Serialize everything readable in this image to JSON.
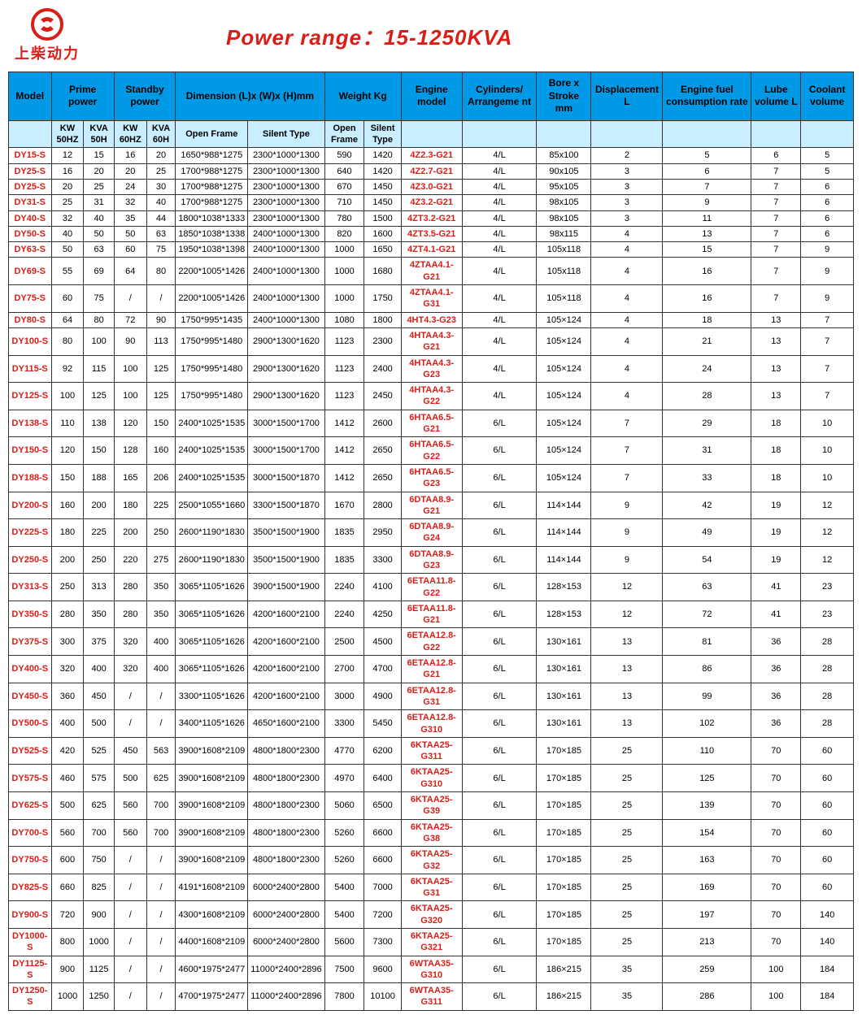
{
  "logo_text": "上柴动力",
  "title": "Power  range：15-1250KVA",
  "columns_top": [
    "Model",
    "Prime power",
    "Standby power",
    "Dimension\n(L)x (W)x (H)mm",
    "Weight\nKg",
    "Engine model",
    "Cylinders/\nArrangeme\nnt",
    "Bore x Stroke\nmm",
    "Displacement\nL",
    "Engine fuel\nconsumption\nrate",
    "Lube\nvolume\nL",
    "Coolant\nvolume"
  ],
  "columns_sub": [
    "KW\n50HZ",
    "KVA\n50H",
    "KW\n60HZ",
    "KVA\n60H",
    "Open\nFrame",
    "Silent\nType",
    "Open\nFrame",
    "Silent\nType"
  ],
  "rows": [
    [
      "DY15-S",
      "12",
      "15",
      "16",
      "20",
      "1650*988*1275",
      "2300*1000*1300",
      "590",
      "1420",
      "4Z2.3-G21",
      "4/L",
      "85x100",
      "2",
      "5",
      "6",
      "5"
    ],
    [
      "DY25-S",
      "16",
      "20",
      "20",
      "25",
      "1700*988*1275",
      "2300*1000*1300",
      "640",
      "1420",
      "4Z2.7-G21",
      "4/L",
      "90x105",
      "3",
      "6",
      "7",
      "5"
    ],
    [
      "DY25-S",
      "20",
      "25",
      "24",
      "30",
      "1700*988*1275",
      "2300*1000*1300",
      "670",
      "1450",
      "4Z3.0-G21",
      "4/L",
      "95x105",
      "3",
      "7",
      "7",
      "6"
    ],
    [
      "DY31-S",
      "25",
      "31",
      "32",
      "40",
      "1700*988*1275",
      "2300*1000*1300",
      "710",
      "1450",
      "4Z3.2-G21",
      "4/L",
      "98x105",
      "3",
      "9",
      "7",
      "6"
    ],
    [
      "DY40-S",
      "32",
      "40",
      "35",
      "44",
      "1800*1038*1333",
      "2300*1000*1300",
      "780",
      "1500",
      "4ZT3.2-G21",
      "4/L",
      "98x105",
      "3",
      "11",
      "7",
      "6"
    ],
    [
      "DY50-S",
      "40",
      "50",
      "50",
      "63",
      "1850*1038*1338",
      "2400*1000*1300",
      "820",
      "1600",
      "4ZT3.5-G21",
      "4/L",
      "98x115",
      "4",
      "13",
      "7",
      "6"
    ],
    [
      "DY63-S",
      "50",
      "63",
      "60",
      "75",
      "1950*1038*1398",
      "2400*1000*1300",
      "1000",
      "1650",
      "4ZT4.1-G21",
      "4/L",
      "105x118",
      "4",
      "15",
      "7",
      "9"
    ],
    [
      "DY69-S",
      "55",
      "69",
      "64",
      "80",
      "2200*1005*1426",
      "2400*1000*1300",
      "1000",
      "1680",
      "4ZTAA4.1-G21",
      "4/L",
      "105x118",
      "4",
      "16",
      "7",
      "9"
    ],
    [
      "DY75-S",
      "60",
      "75",
      "/",
      "/",
      "2200*1005*1426",
      "2400*1000*1300",
      "1000",
      "1750",
      "4ZTAA4.1-G31",
      "4/L",
      "105×118",
      "4",
      "16",
      "7",
      "9"
    ],
    [
      "DY80-S",
      "64",
      "80",
      "72",
      "90",
      "1750*995*1435",
      "2400*1000*1300",
      "1080",
      "1800",
      "4HT4.3-G23",
      "4/L",
      "105×124",
      "4",
      "18",
      "13",
      "7"
    ],
    [
      "DY100-S",
      "80",
      "100",
      "90",
      "113",
      "1750*995*1480",
      "2900*1300*1620",
      "1123",
      "2300",
      "4HTAA4.3-G21",
      "4/L",
      "105×124",
      "4",
      "21",
      "13",
      "7"
    ],
    [
      "DY115-S",
      "92",
      "115",
      "100",
      "125",
      "1750*995*1480",
      "2900*1300*1620",
      "1123",
      "2400",
      "4HTAA4.3-G23",
      "4/L",
      "105×124",
      "4",
      "24",
      "13",
      "7"
    ],
    [
      "DY125-S",
      "100",
      "125",
      "100",
      "125",
      "1750*995*1480",
      "2900*1300*1620",
      "1123",
      "2450",
      "4HTAA4.3-G22",
      "4/L",
      "105×124",
      "4",
      "28",
      "13",
      "7"
    ],
    [
      "DY138-S",
      "110",
      "138",
      "120",
      "150",
      "2400*1025*1535",
      "3000*1500*1700",
      "1412",
      "2600",
      "6HTAA6.5-G21",
      "6/L",
      "105×124",
      "7",
      "29",
      "18",
      "10"
    ],
    [
      "DY150-S",
      "120",
      "150",
      "128",
      "160",
      "2400*1025*1535",
      "3000*1500*1700",
      "1412",
      "2650",
      "6HTAA6.5-G22",
      "6/L",
      "105×124",
      "7",
      "31",
      "18",
      "10"
    ],
    [
      "DY188-S",
      "150",
      "188",
      "165",
      "206",
      "2400*1025*1535",
      "3000*1500*1870",
      "1412",
      "2650",
      "6HTAA6.5-G23",
      "6/L",
      "105×124",
      "7",
      "33",
      "18",
      "10"
    ],
    [
      "DY200-S",
      "160",
      "200",
      "180",
      "225",
      "2500*1055*1660",
      "3300*1500*1870",
      "1670",
      "2800",
      "6DTAA8.9-G21",
      "6/L",
      "114×144",
      "9",
      "42",
      "19",
      "12"
    ],
    [
      "DY225-S",
      "180",
      "225",
      "200",
      "250",
      "2600*1190*1830",
      "3500*1500*1900",
      "1835",
      "2950",
      "6DTAA8.9-G24",
      "6/L",
      "114×144",
      "9",
      "49",
      "19",
      "12"
    ],
    [
      "DY250-S",
      "200",
      "250",
      "220",
      "275",
      "2600*1190*1830",
      "3500*1500*1900",
      "1835",
      "3300",
      "6DTAA8.9-G23",
      "6/L",
      "114×144",
      "9",
      "54",
      "19",
      "12"
    ],
    [
      "DY313-S",
      "250",
      "313",
      "280",
      "350",
      "3065*1105*1626",
      "3900*1500*1900",
      "2240",
      "4100",
      "6ETAA11.8-G22",
      "6/L",
      "128×153",
      "12",
      "63",
      "41",
      "23"
    ],
    [
      "DY350-S",
      "280",
      "350",
      "280",
      "350",
      "3065*1105*1626",
      "4200*1600*2100",
      "2240",
      "4250",
      "6ETAA11.8-G21",
      "6/L",
      "128×153",
      "12",
      "72",
      "41",
      "23"
    ],
    [
      "DY375-S",
      "300",
      "375",
      "320",
      "400",
      "3065*1105*1626",
      "4200*1600*2100",
      "2500",
      "4500",
      "6ETAA12.8-G22",
      "6/L",
      "130×161",
      "13",
      "81",
      "36",
      "28"
    ],
    [
      "DY400-S",
      "320",
      "400",
      "320",
      "400",
      "3065*1105*1626",
      "4200*1600*2100",
      "2700",
      "4700",
      "6ETAA12.8-G21",
      "6/L",
      "130×161",
      "13",
      "86",
      "36",
      "28"
    ],
    [
      "DY450-S",
      "360",
      "450",
      "/",
      "/",
      "3300*1105*1626",
      "4200*1600*2100",
      "3000",
      "4900",
      "6ETAA12.8-G31",
      "6/L",
      "130×161",
      "13",
      "99",
      "36",
      "28"
    ],
    [
      "DY500-S",
      "400",
      "500",
      "/",
      "/",
      "3400*1105*1626",
      "4650*1600*2100",
      "3300",
      "5450",
      "6ETAA12.8-G310",
      "6/L",
      "130×161",
      "13",
      "102",
      "36",
      "28"
    ],
    [
      "DY525-S",
      "420",
      "525",
      "450",
      "563",
      "3900*1608*2109",
      "4800*1800*2300",
      "4770",
      "6200",
      "6KTAA25-G311",
      "6/L",
      "170×185",
      "25",
      "110",
      "70",
      "60"
    ],
    [
      "DY575-S",
      "460",
      "575",
      "500",
      "625",
      "3900*1608*2109",
      "4800*1800*2300",
      "4970",
      "6400",
      "6KTAA25-G310",
      "6/L",
      "170×185",
      "25",
      "125",
      "70",
      "60"
    ],
    [
      "DY625-S",
      "500",
      "625",
      "560",
      "700",
      "3900*1608*2109",
      "4800*1800*2300",
      "5060",
      "6500",
      "6KTAA25-G39",
      "6/L",
      "170×185",
      "25",
      "139",
      "70",
      "60"
    ],
    [
      "DY700-S",
      "560",
      "700",
      "560",
      "700",
      "3900*1608*2109",
      "4800*1800*2300",
      "5260",
      "6600",
      "6KTAA25-G38",
      "6/L",
      "170×185",
      "25",
      "154",
      "70",
      "60"
    ],
    [
      "DY750-S",
      "600",
      "750",
      "/",
      "/",
      "3900*1608*2109",
      "4800*1800*2300",
      "5260",
      "6600",
      "6KTAA25-G32",
      "6/L",
      "170×185",
      "25",
      "163",
      "70",
      "60"
    ],
    [
      "DY825-S",
      "660",
      "825",
      "/",
      "/",
      "4191*1608*2109",
      "6000*2400*2800",
      "5400",
      "7000",
      "6KTAA25-G31",
      "6/L",
      "170×185",
      "25",
      "169",
      "70",
      "60"
    ],
    [
      "DY900-S",
      "720",
      "900",
      "/",
      "/",
      "4300*1608*2109",
      "6000*2400*2800",
      "5400",
      "7200",
      "6KTAA25-G320",
      "6/L",
      "170×185",
      "25",
      "197",
      "70",
      "140"
    ],
    [
      "DY1000-S",
      "800",
      "1000",
      "/",
      "/",
      "4400*1608*2109",
      "6000*2400*2800",
      "5600",
      "7300",
      "6KTAA25-G321",
      "6/L",
      "170×185",
      "25",
      "213",
      "70",
      "140"
    ],
    [
      "DY1125-S",
      "900",
      "1125",
      "/",
      "/",
      "4600*1975*2477",
      "11000*2400*2896",
      "7500",
      "9600",
      "6WTAA35-G310",
      "6/L",
      "186×215",
      "35",
      "259",
      "100",
      "184"
    ],
    [
      "DY1250-S",
      "1000",
      "1250",
      "/",
      "/",
      "4700*1975*2477",
      "11000*2400*2896",
      "7800",
      "10100",
      "6WTAA35-G311",
      "6/L",
      "186×215",
      "35",
      "286",
      "100",
      "184"
    ]
  ],
  "colors": {
    "brand_red": "#d91e18",
    "header_blue": "#0099e6",
    "sub_blue": "#c9eeff",
    "border": "#333"
  }
}
